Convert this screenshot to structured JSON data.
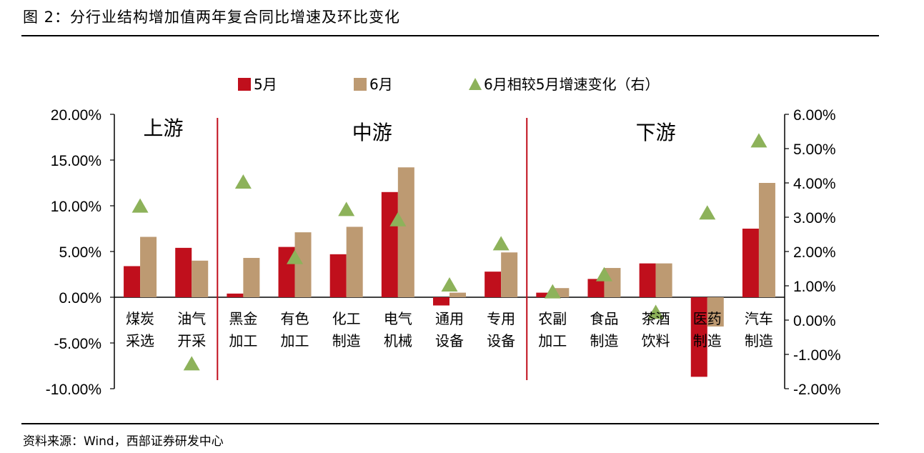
{
  "title": "图 2：分行业结构增加值两年复合同比增速及环比变化",
  "source": "资料来源：Wind，西部证券研发中心",
  "colors": {
    "may": "#c00f1c",
    "june": "#bd9a72",
    "change": "#8db25a",
    "divider": "#c00f1c"
  },
  "chart_data": {
    "type": "bar",
    "title": "",
    "legend": {
      "placement": "top"
    },
    "sections": [
      "上游",
      "中游",
      "下游"
    ],
    "categories": [
      [
        "煤炭",
        "采选"
      ],
      [
        "油气",
        "开采"
      ],
      [
        "黑金",
        "加工"
      ],
      [
        "有色",
        "加工"
      ],
      [
        "化工",
        "制造"
      ],
      [
        "电气",
        "机械"
      ],
      [
        "通用",
        "设备"
      ],
      [
        "专用",
        "设备"
      ],
      [
        "农副",
        "加工"
      ],
      [
        "食品",
        "制造"
      ],
      [
        "茶酒",
        "饮料"
      ],
      [
        "医药",
        "制造"
      ],
      [
        "汽车",
        "制造"
      ]
    ],
    "section_breaks_after_index": [
      1,
      7
    ],
    "y_left": {
      "min": -10,
      "max": 20,
      "ticks": [
        "20.00%",
        "15.00%",
        "10.00%",
        "5.00%",
        "0.00%",
        "-5.00%",
        "-10.00%"
      ]
    },
    "y_right": {
      "min": -2,
      "max": 6,
      "ticks": [
        "6.00%",
        "5.00%",
        "4.00%",
        "3.00%",
        "2.00%",
        "1.00%",
        "0.00%",
        "-1.00%",
        "-2.00%"
      ]
    },
    "series": [
      {
        "name": "5月",
        "axis": "left",
        "kind": "bar",
        "values": [
          3.4,
          5.4,
          0.4,
          5.5,
          4.7,
          11.5,
          -0.9,
          2.8,
          0.5,
          2.0,
          3.7,
          -8.7,
          7.5
        ]
      },
      {
        "name": "6月",
        "axis": "left",
        "kind": "bar",
        "values": [
          6.6,
          4.0,
          4.3,
          7.1,
          7.7,
          14.2,
          0.5,
          4.9,
          1.0,
          3.2,
          3.7,
          -3.2,
          12.5
        ]
      },
      {
        "name": "6月相较5月增速变化（右）",
        "axis": "right",
        "kind": "marker",
        "values": [
          3.3,
          -1.3,
          4.0,
          1.8,
          3.2,
          2.9,
          1.0,
          2.2,
          0.8,
          1.3,
          0.2,
          3.1,
          5.2
        ]
      }
    ]
  }
}
